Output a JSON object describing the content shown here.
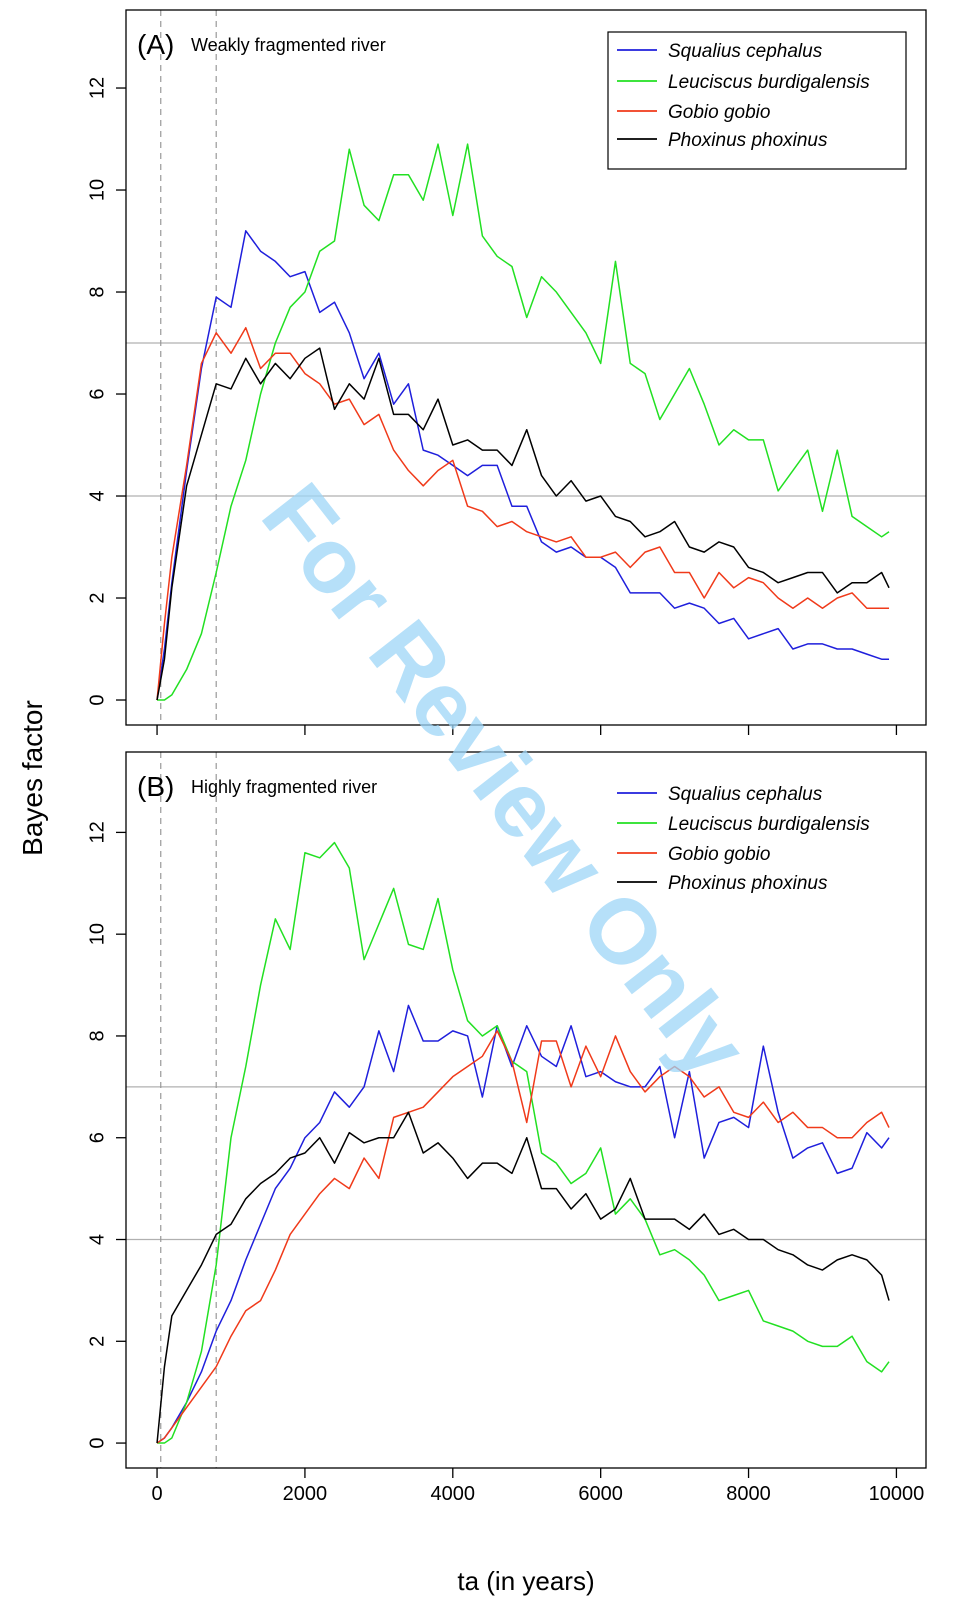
{
  "chart_data": [
    {
      "type": "line",
      "panel_label": "(A)",
      "title": "Weakly fragmented river",
      "ylabel": "Bayes factor",
      "x": [
        0,
        100,
        200,
        400,
        600,
        800,
        1000,
        1200,
        1400,
        1600,
        1800,
        2000,
        2200,
        2400,
        2600,
        2800,
        3000,
        3200,
        3400,
        3600,
        3800,
        4000,
        4200,
        4400,
        4600,
        4800,
        5000,
        5200,
        5400,
        5600,
        5800,
        6000,
        6200,
        6400,
        6600,
        6800,
        7000,
        7200,
        7400,
        7600,
        7800,
        8000,
        8200,
        8400,
        8600,
        8800,
        9000,
        9200,
        9400,
        9600,
        9800,
        9900
      ],
      "series": [
        {
          "name": "Squalius cephalus",
          "color": "#1f1fdc",
          "values": [
            0,
            1.0,
            2.3,
            4.5,
            6.5,
            7.9,
            7.7,
            9.2,
            8.8,
            8.6,
            8.3,
            8.4,
            7.6,
            7.8,
            7.2,
            6.3,
            6.8,
            5.8,
            6.2,
            4.9,
            4.8,
            4.6,
            4.4,
            4.6,
            4.6,
            3.8,
            3.8,
            3.1,
            2.9,
            3.0,
            2.8,
            2.8,
            2.6,
            2.1,
            2.1,
            2.1,
            1.8,
            1.9,
            1.8,
            1.5,
            1.6,
            1.2,
            1.3,
            1.4,
            1.0,
            1.1,
            1.1,
            1.0,
            1.0,
            0.9,
            0.8,
            0.8
          ]
        },
        {
          "name": "Leuciscus burdigalensis",
          "color": "#22e022",
          "values": [
            0,
            0,
            0.1,
            0.6,
            1.3,
            2.5,
            3.8,
            4.7,
            6.0,
            7.0,
            7.7,
            8.0,
            8.8,
            9.0,
            10.8,
            9.7,
            9.4,
            10.3,
            10.3,
            9.8,
            10.9,
            9.5,
            10.9,
            9.1,
            8.7,
            8.5,
            7.5,
            8.3,
            8.0,
            7.6,
            7.2,
            6.6,
            8.6,
            6.6,
            6.4,
            5.5,
            6.0,
            6.5,
            5.8,
            5.0,
            5.3,
            5.1,
            5.1,
            4.1,
            4.5,
            4.9,
            3.7,
            4.9,
            3.6,
            3.4,
            3.2,
            3.3
          ]
        },
        {
          "name": "Gobio gobio",
          "color": "#f03a1a",
          "values": [
            0,
            1.5,
            2.8,
            4.6,
            6.6,
            7.2,
            6.8,
            7.3,
            6.5,
            6.8,
            6.8,
            6.4,
            6.2,
            5.8,
            5.9,
            5.4,
            5.6,
            4.9,
            4.5,
            4.2,
            4.5,
            4.7,
            3.8,
            3.7,
            3.4,
            3.5,
            3.3,
            3.2,
            3.1,
            3.2,
            2.8,
            2.8,
            2.9,
            2.6,
            2.9,
            3.0,
            2.5,
            2.5,
            2.0,
            2.5,
            2.2,
            2.4,
            2.3,
            2.0,
            1.8,
            2.0,
            1.8,
            2.0,
            2.1,
            1.8,
            1.8,
            1.8
          ]
        },
        {
          "name": "Phoxinus phoxinus",
          "color": "#000000",
          "values": [
            0,
            0.8,
            2.2,
            4.2,
            5.2,
            6.2,
            6.1,
            6.7,
            6.2,
            6.6,
            6.3,
            6.7,
            6.9,
            5.7,
            6.2,
            5.9,
            6.7,
            5.6,
            5.6,
            5.3,
            5.9,
            5.0,
            5.1,
            4.9,
            4.9,
            4.6,
            5.3,
            4.4,
            4.0,
            4.3,
            3.9,
            4.0,
            3.6,
            3.5,
            3.2,
            3.3,
            3.5,
            3.0,
            2.9,
            3.1,
            3.0,
            2.6,
            2.5,
            2.3,
            2.4,
            2.5,
            2.5,
            2.1,
            2.3,
            2.3,
            2.5,
            2.2
          ]
        }
      ],
      "xlim": [
        -420,
        10400
      ],
      "ylim": [
        -0.49,
        13.53
      ],
      "xticks": [
        0,
        2000,
        4000,
        6000,
        8000,
        10000
      ],
      "xtick_labels": false,
      "yticks": [
        0,
        2,
        4,
        6,
        8,
        10,
        12
      ],
      "hlines": [
        4,
        7
      ],
      "vlines": [
        50,
        800
      ],
      "legend": "upper right",
      "legend_box": true
    },
    {
      "type": "line",
      "panel_label": "(B)",
      "title": "Highly fragmented river",
      "xlabel": "ta (in years)",
      "x": [
        0,
        100,
        200,
        400,
        600,
        800,
        1000,
        1200,
        1400,
        1600,
        1800,
        2000,
        2200,
        2400,
        2600,
        2800,
        3000,
        3200,
        3400,
        3600,
        3800,
        4000,
        4200,
        4400,
        4600,
        4800,
        5000,
        5200,
        5400,
        5600,
        5800,
        6000,
        6200,
        6400,
        6600,
        6800,
        7000,
        7200,
        7400,
        7600,
        7800,
        8000,
        8200,
        8400,
        8600,
        8800,
        9000,
        9200,
        9400,
        9600,
        9800,
        9900
      ],
      "series": [
        {
          "name": "Squalius cephalus",
          "color": "#1f1fdc",
          "values": [
            0,
            0.1,
            0.3,
            0.8,
            1.4,
            2.2,
            2.8,
            3.6,
            4.3,
            5.0,
            5.4,
            6.0,
            6.3,
            6.9,
            6.6,
            7.0,
            8.1,
            7.3,
            8.6,
            7.9,
            7.9,
            8.1,
            8.0,
            6.8,
            8.2,
            7.4,
            8.2,
            7.6,
            7.4,
            8.2,
            7.2,
            7.3,
            7.1,
            7.0,
            7.0,
            7.4,
            6.0,
            7.3,
            5.6,
            6.3,
            6.4,
            6.2,
            7.8,
            6.5,
            5.6,
            5.8,
            5.9,
            5.3,
            5.4,
            6.1,
            5.8,
            6.0
          ]
        },
        {
          "name": "Leuciscus burdigalensis",
          "color": "#22e022",
          "values": [
            0,
            0,
            0.1,
            0.8,
            1.8,
            3.5,
            6.0,
            7.4,
            9.0,
            10.3,
            9.7,
            11.6,
            11.5,
            11.8,
            11.3,
            9.5,
            10.2,
            10.9,
            9.8,
            9.7,
            10.7,
            9.3,
            8.3,
            8.0,
            8.2,
            7.5,
            7.3,
            5.7,
            5.5,
            5.1,
            5.3,
            5.8,
            4.5,
            4.8,
            4.4,
            3.7,
            3.8,
            3.6,
            3.3,
            2.8,
            2.9,
            3.0,
            2.4,
            2.3,
            2.2,
            2.0,
            1.9,
            1.9,
            2.1,
            1.6,
            1.4,
            1.6
          ]
        },
        {
          "name": "Gobio gobio",
          "color": "#f03a1a",
          "values": [
            0,
            0.1,
            0.3,
            0.7,
            1.1,
            1.5,
            2.1,
            2.6,
            2.8,
            3.4,
            4.1,
            4.5,
            4.9,
            5.2,
            5.0,
            5.6,
            5.2,
            6.4,
            6.5,
            6.6,
            6.9,
            7.2,
            7.4,
            7.6,
            8.1,
            7.5,
            6.3,
            7.9,
            7.9,
            7.0,
            7.8,
            7.2,
            8.0,
            7.3,
            6.9,
            7.2,
            7.4,
            7.2,
            6.8,
            7.0,
            6.5,
            6.4,
            6.7,
            6.3,
            6.5,
            6.2,
            6.2,
            6.0,
            6.0,
            6.3,
            6.5,
            6.2
          ]
        },
        {
          "name": "Phoxinus phoxinus",
          "color": "#000000",
          "values": [
            0,
            1.5,
            2.5,
            3.0,
            3.5,
            4.1,
            4.3,
            4.8,
            5.1,
            5.3,
            5.6,
            5.7,
            6.0,
            5.5,
            6.1,
            5.9,
            6.0,
            6.0,
            6.5,
            5.7,
            5.9,
            5.6,
            5.2,
            5.5,
            5.5,
            5.3,
            6.0,
            5.0,
            5.0,
            4.6,
            4.9,
            4.4,
            4.6,
            5.2,
            4.4,
            4.4,
            4.4,
            4.2,
            4.5,
            4.1,
            4.2,
            4.0,
            4.0,
            3.8,
            3.7,
            3.5,
            3.4,
            3.6,
            3.7,
            3.6,
            3.3,
            2.8
          ]
        }
      ],
      "xlim": [
        -420,
        10400
      ],
      "ylim": [
        -0.49,
        13.58
      ],
      "xticks": [
        0,
        2000,
        4000,
        6000,
        8000,
        10000
      ],
      "xtick_labels": true,
      "yticks": [
        0,
        2,
        4,
        6,
        8,
        10,
        12
      ],
      "hlines": [
        4,
        7
      ],
      "vlines": [
        50,
        800
      ],
      "legend": "upper right",
      "legend_box": false
    }
  ],
  "watermark": "For Review Only"
}
